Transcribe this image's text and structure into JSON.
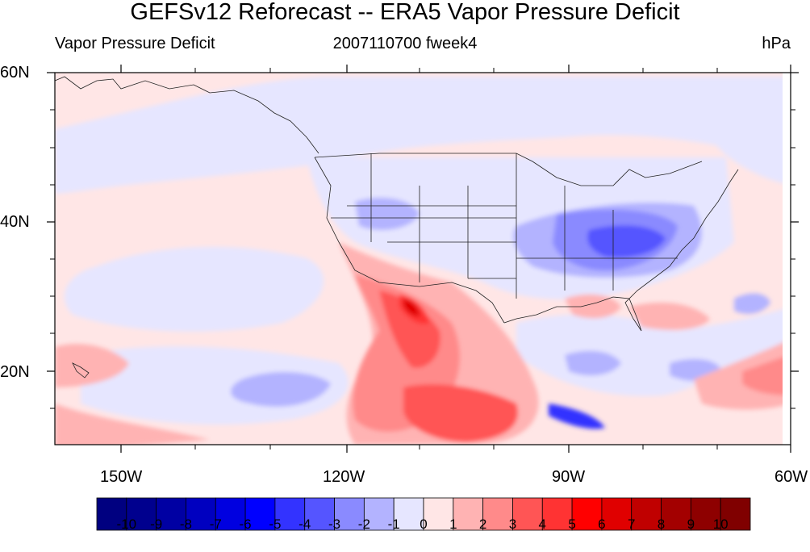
{
  "title": "GEFSv12 Reforecast -- ERA5 Vapor Pressure Deficit",
  "subtitle_left": "Vapor Pressure Deficit",
  "subtitle_center": "2007110700 fweek4",
  "subtitle_right": "hPa",
  "map": {
    "projection": "cylindrical-equidistant",
    "lon_range": [
      -160,
      -60
    ],
    "lat_range": [
      10,
      60
    ],
    "lat_ticks": [
      {
        "value": 60,
        "label": "60N"
      },
      {
        "value": 40,
        "label": "40N"
      },
      {
        "value": 20,
        "label": "20N"
      }
    ],
    "lon_ticks": [
      {
        "value": -150,
        "label": "150W"
      },
      {
        "value": -120,
        "label": "120W"
      },
      {
        "value": -90,
        "label": "90W"
      },
      {
        "value": -60,
        "label": "60W"
      }
    ]
  },
  "colorbar": {
    "colors": [
      "#000080",
      "#00008e",
      "#0000a3",
      "#0000c0",
      "#0000e0",
      "#0000ff",
      "#3333ff",
      "#5555ff",
      "#8a8aff",
      "#b3b3ff",
      "#e6e6ff",
      "#ffe6e6",
      "#ffb3b3",
      "#ff8a8a",
      "#ff5555",
      "#ff3333",
      "#ff0000",
      "#e00000",
      "#c00000",
      "#a30000",
      "#8e0000",
      "#800000"
    ],
    "labels": [
      "-10",
      "-9",
      "-8",
      "-7",
      "-6",
      "-5",
      "-4",
      "-3",
      "-2",
      "-1",
      "0",
      "1",
      "2",
      "3",
      "4",
      "5",
      "6",
      "7",
      "8",
      "9",
      "10"
    ]
  }
}
